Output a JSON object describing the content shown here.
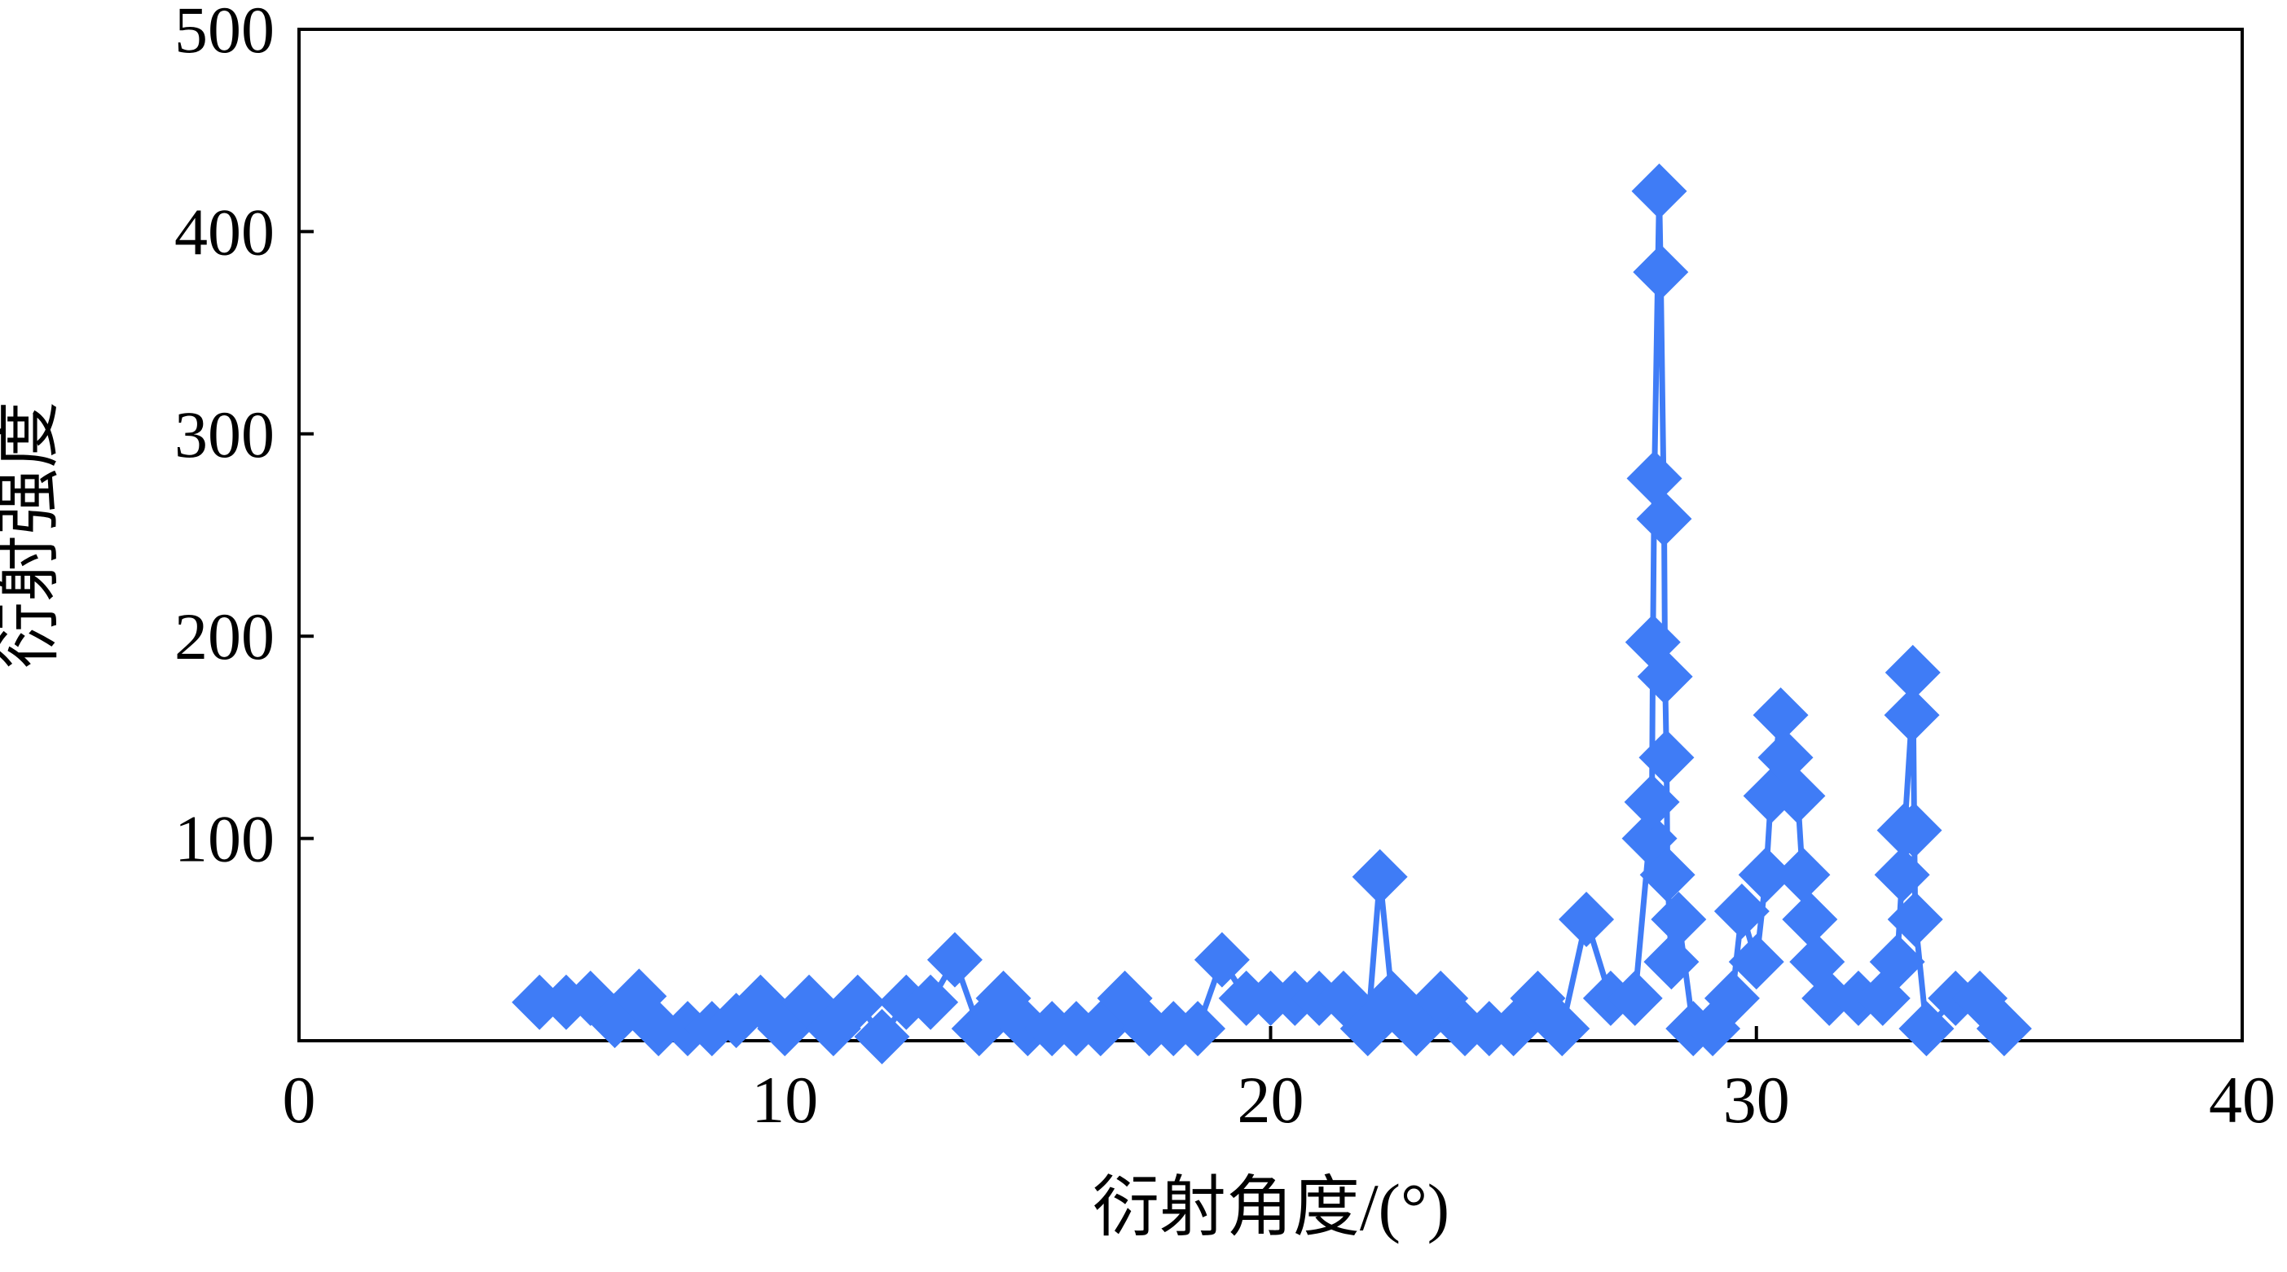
{
  "chart_data": {
    "type": "line",
    "x_label": "衍射角度/(°)",
    "y_label": "衍射强度",
    "xlim": [
      0,
      40
    ],
    "xticks": [
      0,
      10,
      20,
      30,
      40
    ],
    "ylim": [
      0,
      500
    ],
    "yticks": [
      100,
      200,
      300,
      400,
      500
    ],
    "series": [
      {
        "color": "#3f7cf6",
        "marker": "diamond",
        "x": [
          4.95,
          5.5,
          6.0,
          6.5,
          7.0,
          7.4,
          8.0,
          8.5,
          9.0,
          9.5,
          10.0,
          10.5,
          11.0,
          11.5,
          12.0,
          12.5,
          13.0,
          13.5,
          14.0,
          14.5,
          15.0,
          15.5,
          16.0,
          16.5,
          17.0,
          17.5,
          18.0,
          18.5,
          19.0,
          19.5,
          20.0,
          20.5,
          21.0,
          21.5,
          22.0,
          22.25,
          22.5,
          23.0,
          23.5,
          24.0,
          24.5,
          25.0,
          25.5,
          26.0,
          26.5,
          27.0,
          27.5,
          27.8,
          27.85,
          27.87,
          27.9,
          28.0,
          28.03,
          28.1,
          28.12,
          28.15,
          28.17,
          28.25,
          28.4,
          28.7,
          29.1,
          29.5,
          29.7,
          30.0,
          30.2,
          30.3,
          30.5,
          30.6,
          30.85,
          30.95,
          31.1,
          31.25,
          31.5,
          32.1,
          32.6,
          32.9,
          33.0,
          33.05,
          33.2,
          33.22,
          33.25,
          33.27,
          33.5,
          34.1,
          34.6,
          35.1
        ],
        "values": [
          19,
          19,
          21,
          10,
          22,
          6,
          6,
          6,
          10,
          19,
          6,
          19,
          6,
          19,
          2,
          19,
          19,
          40,
          6,
          21,
          6,
          6,
          6,
          6,
          21,
          6,
          6,
          6,
          40,
          21,
          21,
          21,
          21,
          21,
          6,
          81,
          21,
          6,
          21,
          6,
          6,
          6,
          21,
          6,
          60,
          21,
          21,
          100,
          118,
          197,
          278,
          420,
          380,
          258,
          180,
          140,
          82,
          39,
          60,
          6,
          6,
          21,
          64,
          39,
          82,
          121,
          161,
          140,
          121,
          82,
          60,
          39,
          21,
          21,
          21,
          39,
          82,
          104,
          161,
          182,
          104,
          60,
          6,
          21,
          21,
          6
        ]
      }
    ]
  }
}
